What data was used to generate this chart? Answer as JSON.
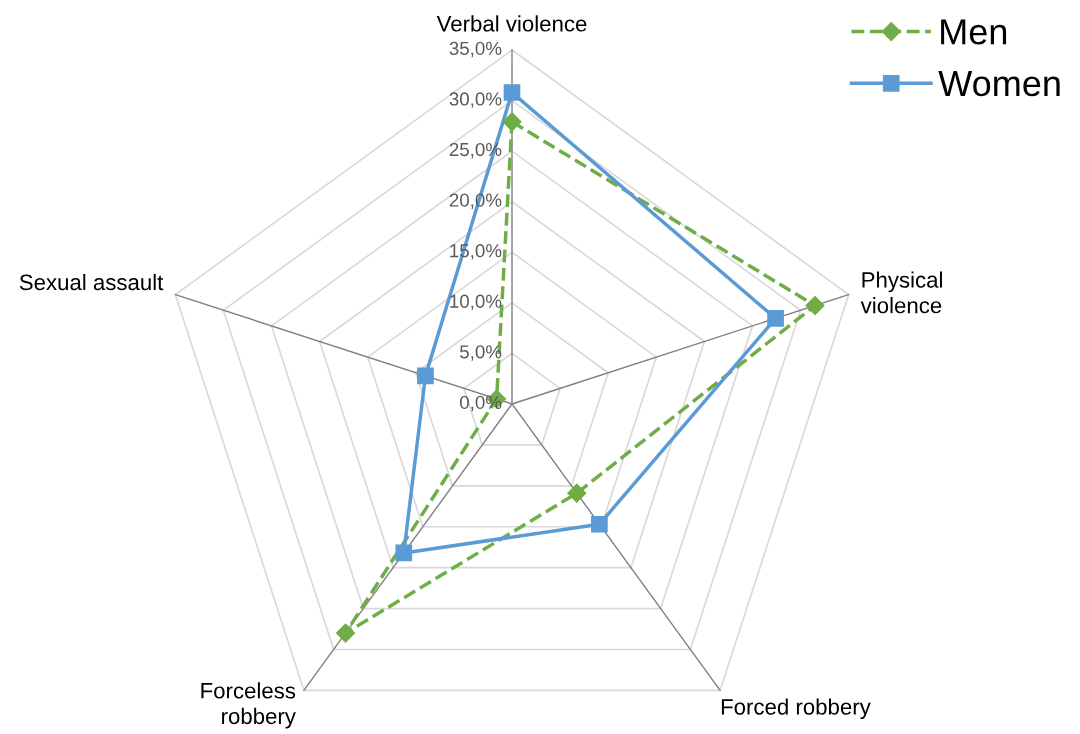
{
  "chart_data": {
    "type": "radar",
    "categories": [
      "Verbal violence",
      "Physical\nviolence",
      "Forced robbery",
      "Forceless\nrobbery",
      "Sexual assault"
    ],
    "series": [
      {
        "name": "Men",
        "color": "#70ad47",
        "values": [
          27.9,
          31.5,
          10.9,
          28.0,
          1.6
        ],
        "marker": "diamond",
        "line_style": "dashed"
      },
      {
        "name": "Women",
        "color": "#5b9bd5",
        "values": [
          30.8,
          27.4,
          14.7,
          18.2,
          9.0
        ],
        "marker": "square",
        "line_style": "solid"
      }
    ],
    "ylim": [
      0,
      35
    ],
    "yticks": [
      {
        "value": 0,
        "label": "0,0%"
      },
      {
        "value": 5,
        "label": "5,0%"
      },
      {
        "value": 10,
        "label": "10,0%"
      },
      {
        "value": 15,
        "label": "15,0%"
      },
      {
        "value": 20,
        "label": "20,0%"
      },
      {
        "value": 25,
        "label": "25,0%"
      },
      {
        "value": 30,
        "label": "30,0%"
      },
      {
        "value": 35,
        "label": "35,0%"
      }
    ],
    "grid": true,
    "legend": "top right"
  }
}
